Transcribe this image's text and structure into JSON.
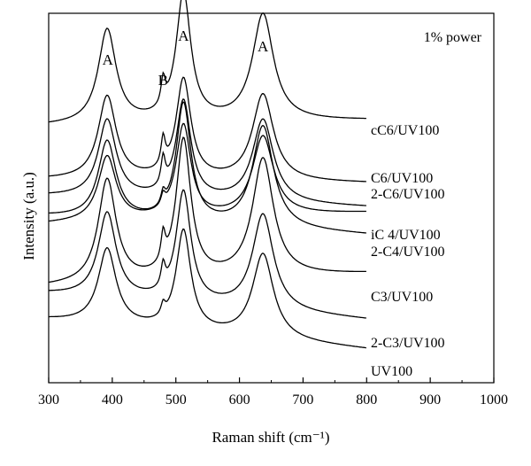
{
  "chart_data": {
    "type": "line",
    "title": "",
    "power_label": "1% power",
    "xlabel": "Raman shift (cm⁻¹)",
    "ylabel": "Intensity (a.u.)",
    "xlim": [
      300,
      1000
    ],
    "xticks": [
      300,
      400,
      500,
      600,
      700,
      800,
      900,
      1000
    ],
    "grid": false,
    "y_units": "arbitrary (stacked spectra; values are relative intensity with vertical offsets)",
    "peak_labels": [
      {
        "text": "A",
        "x": 393
      },
      {
        "text": "B",
        "x": 480
      },
      {
        "text": "A",
        "x": 512
      },
      {
        "text": "A",
        "x": 637
      }
    ],
    "peak_shape": {
      "A1": 392,
      "B": 480,
      "A2": 512,
      "A3": 637
    },
    "series": [
      {
        "name": "cC6/UV100",
        "x_range": [
          300,
          800
        ],
        "baseline": 0.695,
        "slope": 0.015,
        "peaks": {
          "A1": 0.255,
          "B": 0.07,
          "A2": 0.345,
          "A3": 0.29
        }
      },
      {
        "name": "C6/UV100",
        "x_range": [
          300,
          800
        ],
        "baseline": 0.55,
        "slope": -0.01,
        "peaks": {
          "A1": 0.225,
          "B": 0.075,
          "A2": 0.27,
          "A3": 0.235
        }
      },
      {
        "name": "2-C6/UV100",
        "x_range": [
          300,
          800
        ],
        "baseline": 0.505,
        "slope": -0.03,
        "peaks": {
          "A1": 0.21,
          "B": 0.075,
          "A2": 0.265,
          "A3": 0.225
        }
      },
      {
        "name": "iC 4/UV100",
        "x_range": [
          300,
          800
        ],
        "baseline": 0.43,
        "slope": 0.03,
        "peaks": {
          "A1": 0.175,
          "B": 0.03,
          "A2": 0.25,
          "A3": 0.215
        }
      },
      {
        "name": "2-C4/UV100",
        "x_range": [
          300,
          800
        ],
        "baseline": 0.45,
        "slope": -0.05,
        "peaks": {
          "A1": 0.21,
          "B": 0.035,
          "A2": 0.32,
          "A3": 0.275
        }
      },
      {
        "name": "C3/UV100",
        "x_range": [
          300,
          800
        ],
        "baseline": 0.26,
        "slope": 0.035,
        "peaks": {
          "A1": 0.28,
          "B": 0.075,
          "A2": 0.375,
          "A3": 0.32
        }
      },
      {
        "name": "2-C3/UV100",
        "x_range": [
          300,
          800
        ],
        "baseline": 0.24,
        "slope": -0.07,
        "peaks": {
          "A1": 0.23,
          "B": 0.06,
          "A2": 0.3,
          "A3": 0.26
        }
      },
      {
        "name": "UV100",
        "x_range": [
          300,
          800
        ],
        "baseline": 0.17,
        "slope": -0.08,
        "peaks": {
          "A1": 0.205,
          "B": 0.03,
          "A2": 0.27,
          "A3": 0.23
        }
      }
    ]
  }
}
